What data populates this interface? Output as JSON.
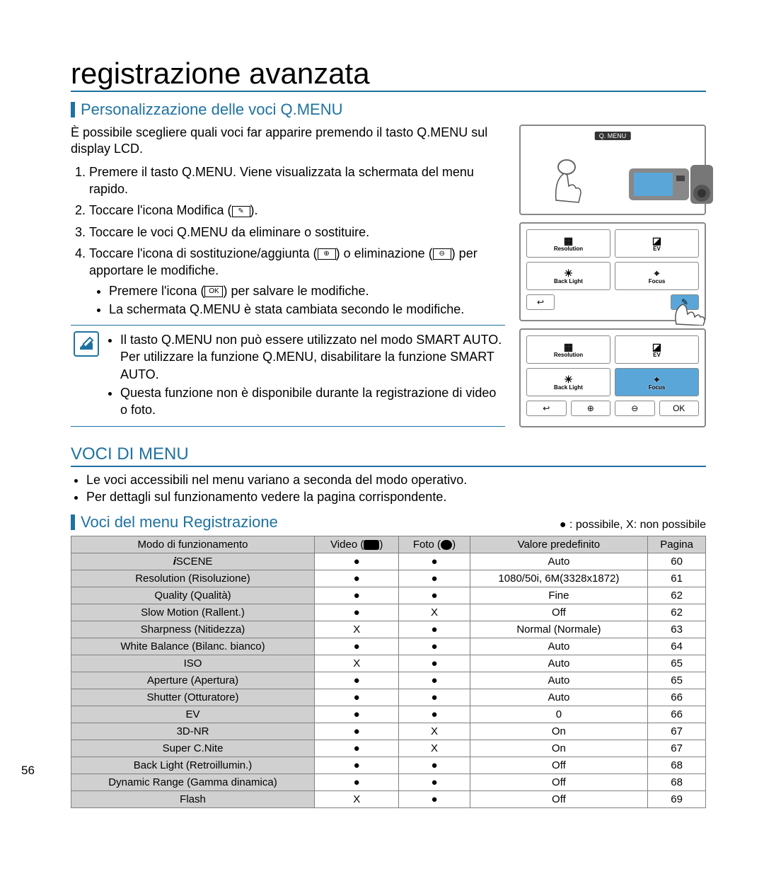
{
  "page_number": "56",
  "main_title": "registrazione avanzata",
  "section1": {
    "title": "Personalizzazione delle voci Q.MENU",
    "intro": "È possibile scegliere quali voci far apparire premendo il tasto Q.MENU sul display LCD.",
    "steps": [
      "Premere il tasto Q.MENU. Viene visualizzata la schermata del menu rapido.",
      "Toccare l'icona Modifica (",
      "Toccare le voci Q.MENU da eliminare o sostituire.",
      "Toccare l'icona di sostituzione/aggiunta ("
    ],
    "step2_suffix": ").",
    "step4_mid": ") o eliminazione (",
    "step4_suffix": ") per apportare le modifiche.",
    "sub_bullets": [
      "Premere l'icona (",
      "La schermata Q.MENU è stata cambiata secondo le modifiche."
    ],
    "sub1_suffix": ") per salvare le modifiche.",
    "ok_label": "OK"
  },
  "note": {
    "items": [
      "Il tasto Q.MENU non può essere utilizzato nel modo SMART AUTO. Per utilizzare la funzione Q.MENU, disabilitare la funzione SMART AUTO.",
      "Questa funzione non è disponibile durante la registrazione di video o foto."
    ]
  },
  "section2": {
    "title": "VOCI DI MENU",
    "bullets": [
      "Le voci accessibili nel menu variano a seconda del modo operativo.",
      "Per dettagli sul funzionamento vedere la pagina corrispondente."
    ]
  },
  "section3": {
    "title": "Voci del menu Registrazione",
    "legend": "● : possibile, X: non possibile"
  },
  "screens": {
    "qmenu_label": "Q. MENU",
    "grid_items": [
      {
        "icon": "▦",
        "label": "Resolution"
      },
      {
        "icon": "◪",
        "label": "EV"
      },
      {
        "icon": "☀",
        "label": "Back Light"
      },
      {
        "icon": "⌖",
        "label": "Focus"
      }
    ],
    "bottom_buttons_a": [
      "↩",
      "✎"
    ],
    "bottom_buttons_b": [
      "↩",
      "⊕",
      "⊖",
      "OK"
    ]
  },
  "table": {
    "columns": [
      "Modo di funzionamento",
      "Video (",
      "Foto (",
      "Valore predefinito",
      "Pagina"
    ],
    "col_video_suffix": ")",
    "col_foto_suffix": ")",
    "rows": [
      [
        "𝒊SCENE",
        "●",
        "●",
        "Auto",
        "60"
      ],
      [
        "Resolution (Risoluzione)",
        "●",
        "●",
        "1080/50i, 6M(3328x1872)",
        "61"
      ],
      [
        "Quality (Qualità)",
        "●",
        "●",
        "Fine",
        "62"
      ],
      [
        "Slow Motion (Rallent.)",
        "●",
        "X",
        "Off",
        "62"
      ],
      [
        "Sharpness (Nitidezza)",
        "X",
        "●",
        "Normal (Normale)",
        "63"
      ],
      [
        "White Balance (Bilanc. bianco)",
        "●",
        "●",
        "Auto",
        "64"
      ],
      [
        "ISO",
        "X",
        "●",
        "Auto",
        "65"
      ],
      [
        "Aperture (Apertura)",
        "●",
        "●",
        "Auto",
        "65"
      ],
      [
        "Shutter (Otturatore)",
        "●",
        "●",
        "Auto",
        "66"
      ],
      [
        "EV",
        "●",
        "●",
        "0",
        "66"
      ],
      [
        "3D-NR",
        "●",
        "X",
        "On",
        "67"
      ],
      [
        "Super C.Nite",
        "●",
        "X",
        "On",
        "67"
      ],
      [
        "Back Light (Retroillumin.)",
        "●",
        "●",
        "Off",
        "68"
      ],
      [
        "Dynamic Range (Gamma dinamica)",
        "●",
        "●",
        "Off",
        "68"
      ],
      [
        "Flash",
        "X",
        "●",
        "Off",
        "69"
      ]
    ]
  },
  "colors": {
    "accent": "#1e72a0",
    "table_header_bg": "#d0d0d0",
    "border": "#808080"
  }
}
